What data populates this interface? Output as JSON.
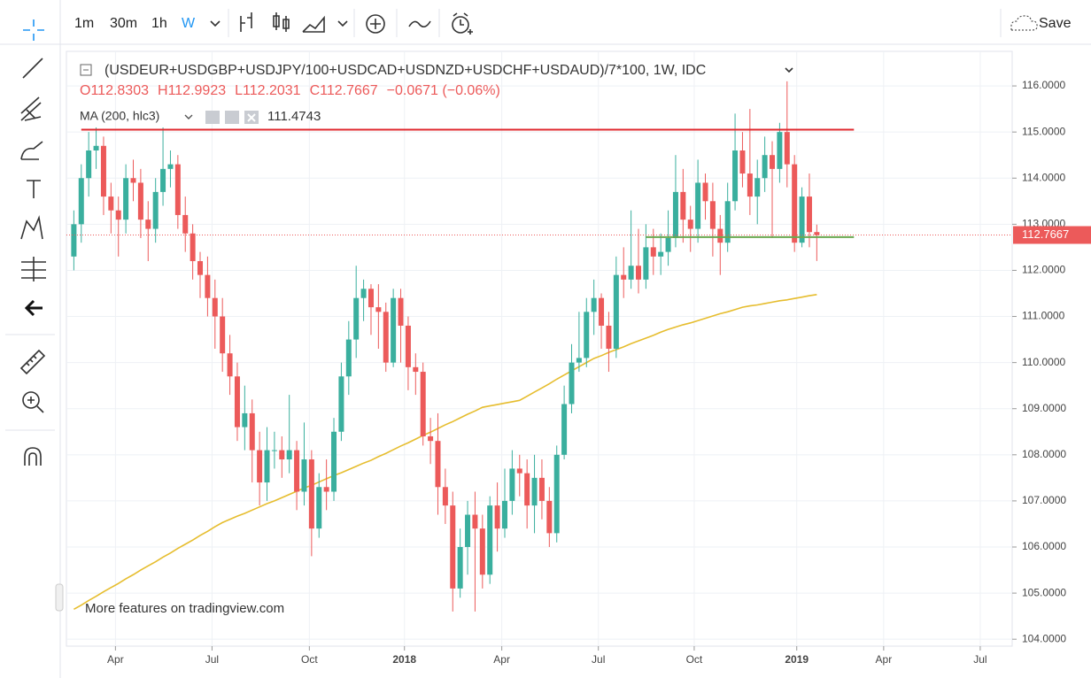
{
  "toolbar": {
    "intervals": [
      "1m",
      "30m",
      "1h",
      "W"
    ],
    "save": "Save"
  },
  "watermark": "More features on tradingview.com",
  "chart_data": {
    "type": "candlestick",
    "title": "(USDEUR+USDGBP+USDJPY/100+USDCAD+USDNZD+USDCHF+USDAUD)/7*100, 1W, IDC",
    "ohlc_labels": [
      "O",
      "H",
      "L",
      "C"
    ],
    "change": "−0.0671 (−0.06%)",
    "up_color": "#3aaf9e",
    "down_color": "#ec5a5a",
    "open": [
      112.3,
      113.0,
      114.0,
      114.6,
      114.7,
      113.6,
      113.3,
      113.1,
      114.0,
      113.9,
      113.1,
      112.9,
      113.7,
      114.2,
      114.3,
      113.2,
      112.8,
      112.2,
      111.9,
      111.4,
      111.0,
      110.2,
      109.7,
      108.6,
      108.9,
      108.1,
      107.4,
      108.1,
      108.1,
      107.9,
      108.1,
      107.2,
      107.9,
      106.4,
      107.3,
      107.2,
      108.5,
      109.7,
      110.5,
      111.4,
      111.6,
      111.2,
      111.1,
      110.0,
      111.4,
      110.8,
      109.9,
      109.8,
      108.4,
      108.3,
      107.3,
      106.9,
      105.1,
      106.0,
      106.7,
      106.4,
      105.4,
      106.9,
      106.4,
      107.0,
      107.7,
      107.6,
      106.9,
      107.5,
      107.0,
      106.3,
      108.0,
      109.1,
      110.0,
      110.1,
      111.1,
      111.4,
      110.8,
      110.3,
      111.9,
      111.8,
      112.1,
      111.8,
      112.5,
      112.3,
      112.4,
      112.7,
      113.7,
      113.1,
      112.9,
      113.9,
      113.5,
      112.9,
      112.6,
      113.5,
      114.6,
      114.1,
      113.6,
      114.0,
      114.5,
      114.2,
      115.0,
      114.3,
      112.6,
      113.6,
      112.8303
    ],
    "high": [
      113.3,
      114.3,
      115.0,
      115.1,
      114.9,
      113.9,
      113.6,
      114.3,
      114.4,
      114.2,
      113.5,
      114.0,
      115.1,
      114.6,
      114.5,
      113.6,
      113.0,
      112.4,
      112.3,
      111.8,
      111.4,
      110.6,
      110.0,
      109.5,
      109.2,
      108.5,
      108.6,
      108.5,
      108.4,
      109.3,
      108.3,
      108.7,
      108.1,
      107.6,
      107.9,
      108.8,
      110.0,
      110.9,
      112.1,
      111.8,
      111.7,
      111.7,
      111.3,
      111.6,
      111.6,
      111.0,
      110.2,
      110.0,
      108.8,
      108.9,
      107.7,
      107.2,
      106.4,
      107.0,
      107.2,
      106.7,
      107.1,
      107.4,
      107.7,
      108.1,
      108.0,
      107.9,
      108.0,
      107.9,
      107.3,
      108.2,
      109.5,
      110.4,
      111.1,
      111.4,
      111.8,
      111.5,
      111.1,
      112.3,
      112.5,
      113.3,
      112.9,
      113.0,
      112.9,
      112.8,
      113.3,
      114.5,
      114.2,
      113.4,
      114.4,
      114.1,
      113.9,
      113.2,
      113.9,
      115.4,
      115.0,
      115.5,
      114.4,
      114.9,
      114.8,
      115.2,
      116.1,
      114.5,
      113.8,
      114.1,
      112.9923
    ],
    "low": [
      112.0,
      112.6,
      113.6,
      114.2,
      113.2,
      112.8,
      112.3,
      112.8,
      113.5,
      112.7,
      112.2,
      112.6,
      113.4,
      113.8,
      112.9,
      112.4,
      111.8,
      111.4,
      111.0,
      110.3,
      109.8,
      109.3,
      108.3,
      108.1,
      107.4,
      106.9,
      107.0,
      107.7,
      107.5,
      107.6,
      106.8,
      106.9,
      105.8,
      106.2,
      106.8,
      107.0,
      108.3,
      109.3,
      110.1,
      110.9,
      110.6,
      110.3,
      109.8,
      109.9,
      110.0,
      109.4,
      109.3,
      108.2,
      107.8,
      106.7,
      106.5,
      104.6,
      104.9,
      105.4,
      104.6,
      105.1,
      105.2,
      105.9,
      106.2,
      106.7,
      107.1,
      106.4,
      106.3,
      106.6,
      106.0,
      106.1,
      107.9,
      108.9,
      109.8,
      109.9,
      110.6,
      110.3,
      109.8,
      110.1,
      111.4,
      111.6,
      111.5,
      111.6,
      111.9,
      111.9,
      112.1,
      112.5,
      112.6,
      112.4,
      112.6,
      113.1,
      112.3,
      111.9,
      112.4,
      113.3,
      113.8,
      113.2,
      113.0,
      113.7,
      112.7,
      113.9,
      113.8,
      112.4,
      112.5,
      112.5,
      112.2031
    ],
    "close": [
      113.0,
      114.0,
      114.6,
      114.7,
      113.6,
      113.3,
      113.1,
      114.0,
      113.9,
      113.1,
      112.9,
      113.7,
      114.2,
      114.3,
      113.2,
      112.8,
      112.2,
      111.9,
      111.4,
      111.0,
      110.2,
      109.7,
      108.6,
      108.9,
      108.1,
      107.4,
      108.1,
      108.1,
      107.9,
      108.1,
      107.2,
      107.9,
      106.4,
      107.3,
      107.2,
      108.5,
      109.7,
      110.5,
      111.4,
      111.6,
      111.2,
      111.1,
      110.0,
      111.4,
      110.8,
      109.9,
      109.8,
      108.4,
      108.3,
      107.3,
      106.9,
      105.1,
      106.0,
      106.7,
      106.4,
      105.4,
      106.9,
      106.4,
      107.0,
      107.7,
      107.6,
      106.9,
      107.5,
      107.0,
      106.3,
      108.0,
      109.1,
      110.0,
      110.1,
      111.1,
      111.4,
      110.8,
      110.3,
      111.9,
      111.8,
      112.1,
      111.8,
      112.5,
      112.3,
      112.4,
      112.7,
      113.7,
      113.1,
      112.9,
      113.9,
      113.5,
      112.9,
      112.6,
      113.5,
      114.6,
      114.1,
      113.6,
      114.0,
      114.5,
      114.2,
      115.0,
      114.3,
      112.6,
      113.6,
      112.83,
      112.7667
    ],
    "indicator": {
      "name": "MA (200, hlc3)",
      "color": "#e6bd2e",
      "values": [
        104.65,
        104.74,
        104.84,
        104.93,
        105.03,
        105.12,
        105.21,
        105.31,
        105.4,
        105.5,
        105.59,
        105.68,
        105.78,
        105.87,
        105.97,
        106.06,
        106.15,
        106.25,
        106.34,
        106.44,
        106.53,
        106.6,
        106.67,
        106.73,
        106.8,
        106.87,
        106.94,
        107.0,
        107.07,
        107.14,
        107.21,
        107.28,
        107.34,
        107.41,
        107.48,
        107.55,
        107.61,
        107.68,
        107.75,
        107.82,
        107.88,
        107.96,
        108.03,
        108.11,
        108.19,
        108.26,
        108.34,
        108.42,
        108.49,
        108.57,
        108.65,
        108.72,
        108.8,
        108.88,
        108.95,
        109.03,
        109.06,
        109.09,
        109.12,
        109.15,
        109.18,
        109.27,
        109.36,
        109.45,
        109.54,
        109.64,
        109.73,
        109.82,
        109.91,
        110.0,
        110.09,
        110.15,
        110.22,
        110.28,
        110.34,
        110.41,
        110.47,
        110.53,
        110.59,
        110.66,
        110.72,
        110.77,
        110.82,
        110.86,
        110.91,
        110.96,
        111.01,
        111.06,
        111.1,
        111.15,
        111.2,
        111.23,
        111.25,
        111.28,
        111.31,
        111.34,
        111.36,
        111.39,
        111.42,
        111.45,
        111.4743
      ]
    },
    "hlines": [
      {
        "value": 115.05,
        "from": 1,
        "to": 105,
        "color": "#e0282e"
      },
      {
        "value": 112.72,
        "from": 77,
        "to": 105,
        "color": "#6aa84f"
      }
    ],
    "xlim": [
      -1,
      126.3
    ],
    "xticks": [
      {
        "value": 5.6,
        "label": "Apr"
      },
      {
        "value": 18.6,
        "label": "Jul"
      },
      {
        "value": 31.7,
        "label": "Oct"
      },
      {
        "value": 44.5,
        "label": "2018"
      },
      {
        "value": 57.6,
        "label": "Apr"
      },
      {
        "value": 70.6,
        "label": "Jul"
      },
      {
        "value": 83.5,
        "label": "Oct"
      },
      {
        "value": 97.3,
        "label": "2019"
      },
      {
        "value": 109,
        "label": "Apr"
      },
      {
        "value": 122,
        "label": "Jul"
      }
    ],
    "ylim": [
      103.85,
      116.75
    ],
    "yticks": [
      {
        "value": 104,
        "label": "104.0000"
      },
      {
        "value": 105,
        "label": "105.0000"
      },
      {
        "value": 106,
        "label": "106.0000"
      },
      {
        "value": 107,
        "label": "107.0000"
      },
      {
        "value": 108,
        "label": "108.0000"
      },
      {
        "value": 109,
        "label": "109.0000"
      },
      {
        "value": 110,
        "label": "110.0000"
      },
      {
        "value": 111,
        "label": "111.0000"
      },
      {
        "value": 112,
        "label": "112.0000"
      },
      {
        "value": 113,
        "label": "113.0000"
      },
      {
        "value": 114,
        "label": "114.0000"
      },
      {
        "value": 115,
        "label": "115.0000"
      },
      {
        "value": 116,
        "label": "116.0000"
      }
    ],
    "grid": true
  }
}
